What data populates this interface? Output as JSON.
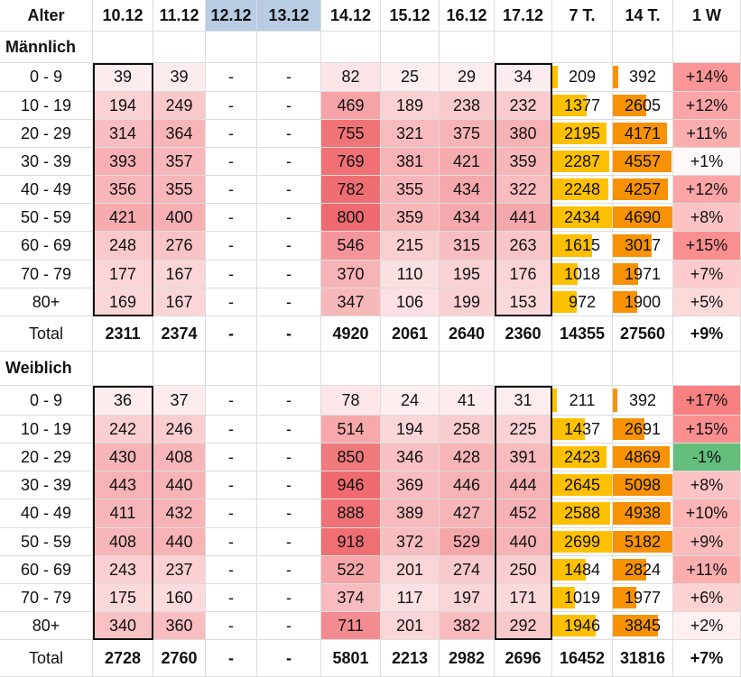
{
  "table": {
    "headers": [
      "Alter",
      "10.12",
      "11.12",
      "12.12",
      "13.12",
      "14.12",
      "15.12",
      "16.12",
      "17.12",
      "7 T.",
      "14 T.",
      "1 W"
    ],
    "sections": [
      {
        "title": "Männlich",
        "rows": [
          {
            "age": "0 - 9",
            "values": [
              "39",
              "39",
              "-",
              "-",
              "82",
              "25",
              "29",
              "34",
              "209",
              "392",
              "+14%"
            ]
          },
          {
            "age": "10 - 19",
            "values": [
              "194",
              "249",
              "-",
              "-",
              "469",
              "189",
              "238",
              "232",
              "1377",
              "2605",
              "+12%"
            ]
          },
          {
            "age": "20 - 29",
            "values": [
              "314",
              "364",
              "-",
              "-",
              "755",
              "321",
              "375",
              "380",
              "2195",
              "4171",
              "+11%"
            ]
          },
          {
            "age": "30 - 39",
            "values": [
              "393",
              "357",
              "-",
              "-",
              "769",
              "381",
              "421",
              "359",
              "2287",
              "4557",
              "+1%"
            ]
          },
          {
            "age": "40 - 49",
            "values": [
              "356",
              "355",
              "-",
              "-",
              "782",
              "355",
              "434",
              "322",
              "2248",
              "4257",
              "+12%"
            ]
          },
          {
            "age": "50 - 59",
            "values": [
              "421",
              "400",
              "-",
              "-",
              "800",
              "359",
              "434",
              "441",
              "2434",
              "4690",
              "+8%"
            ]
          },
          {
            "age": "60 - 69",
            "values": [
              "248",
              "276",
              "-",
              "-",
              "546",
              "215",
              "315",
              "263",
              "1615",
              "3017",
              "+15%"
            ]
          },
          {
            "age": "70 - 79",
            "values": [
              "177",
              "167",
              "-",
              "-",
              "370",
              "110",
              "195",
              "176",
              "1018",
              "1971",
              "+7%"
            ]
          },
          {
            "age": "80+",
            "values": [
              "169",
              "167",
              "-",
              "-",
              "347",
              "106",
              "199",
              "153",
              "972",
              "1900",
              "+5%"
            ]
          }
        ],
        "total": {
          "label": "Total",
          "values": [
            "2311",
            "2374",
            "-",
            "-",
            "4920",
            "2061",
            "2640",
            "2360",
            "14355",
            "27560",
            "+9%"
          ]
        }
      },
      {
        "title": "Weiblich",
        "rows": [
          {
            "age": "0 - 9",
            "values": [
              "36",
              "37",
              "-",
              "-",
              "78",
              "24",
              "41",
              "31",
              "211",
              "392",
              "+17%"
            ]
          },
          {
            "age": "10 - 19",
            "values": [
              "242",
              "246",
              "-",
              "-",
              "514",
              "194",
              "258",
              "225",
              "1437",
              "2691",
              "+15%"
            ]
          },
          {
            "age": "20 - 29",
            "values": [
              "430",
              "408",
              "-",
              "-",
              "850",
              "346",
              "428",
              "391",
              "2423",
              "4869",
              "-1%"
            ]
          },
          {
            "age": "30 - 39",
            "values": [
              "443",
              "440",
              "-",
              "-",
              "946",
              "369",
              "446",
              "444",
              "2645",
              "5098",
              "+8%"
            ]
          },
          {
            "age": "40 - 49",
            "values": [
              "411",
              "432",
              "-",
              "-",
              "888",
              "389",
              "427",
              "452",
              "2588",
              "4938",
              "+10%"
            ]
          },
          {
            "age": "50 - 59",
            "values": [
              "408",
              "440",
              "-",
              "-",
              "918",
              "372",
              "529",
              "440",
              "2699",
              "5182",
              "+9%"
            ]
          },
          {
            "age": "60 - 69",
            "values": [
              "243",
              "237",
              "-",
              "-",
              "522",
              "201",
              "274",
              "250",
              "1484",
              "2824",
              "+11%"
            ]
          },
          {
            "age": "70 - 79",
            "values": [
              "175",
              "160",
              "-",
              "-",
              "374",
              "117",
              "197",
              "171",
              "1019",
              "1977",
              "+6%"
            ]
          },
          {
            "age": "80+",
            "values": [
              "340",
              "360",
              "-",
              "-",
              "711",
              "201",
              "382",
              "292",
              "1946",
              "3845",
              "+2%"
            ]
          }
        ],
        "total": {
          "label": "Total",
          "values": [
            "2728",
            "2760",
            "-",
            "-",
            "5801",
            "2213",
            "2982",
            "2696",
            "16452",
            "31816",
            "+7%"
          ]
        }
      }
    ]
  },
  "colors": {
    "header_highlight": "#b8cce4",
    "heat_low": "#fdeef0",
    "heat_high": "#ef6b6f",
    "bar_7t": "#ffc000",
    "bar_14t": "#f79205",
    "change_pos_bg": "#fde3e4",
    "change_pos_strong": "#f8696b",
    "change_neg_bg": "#63be7b",
    "box_border": "#111111"
  }
}
